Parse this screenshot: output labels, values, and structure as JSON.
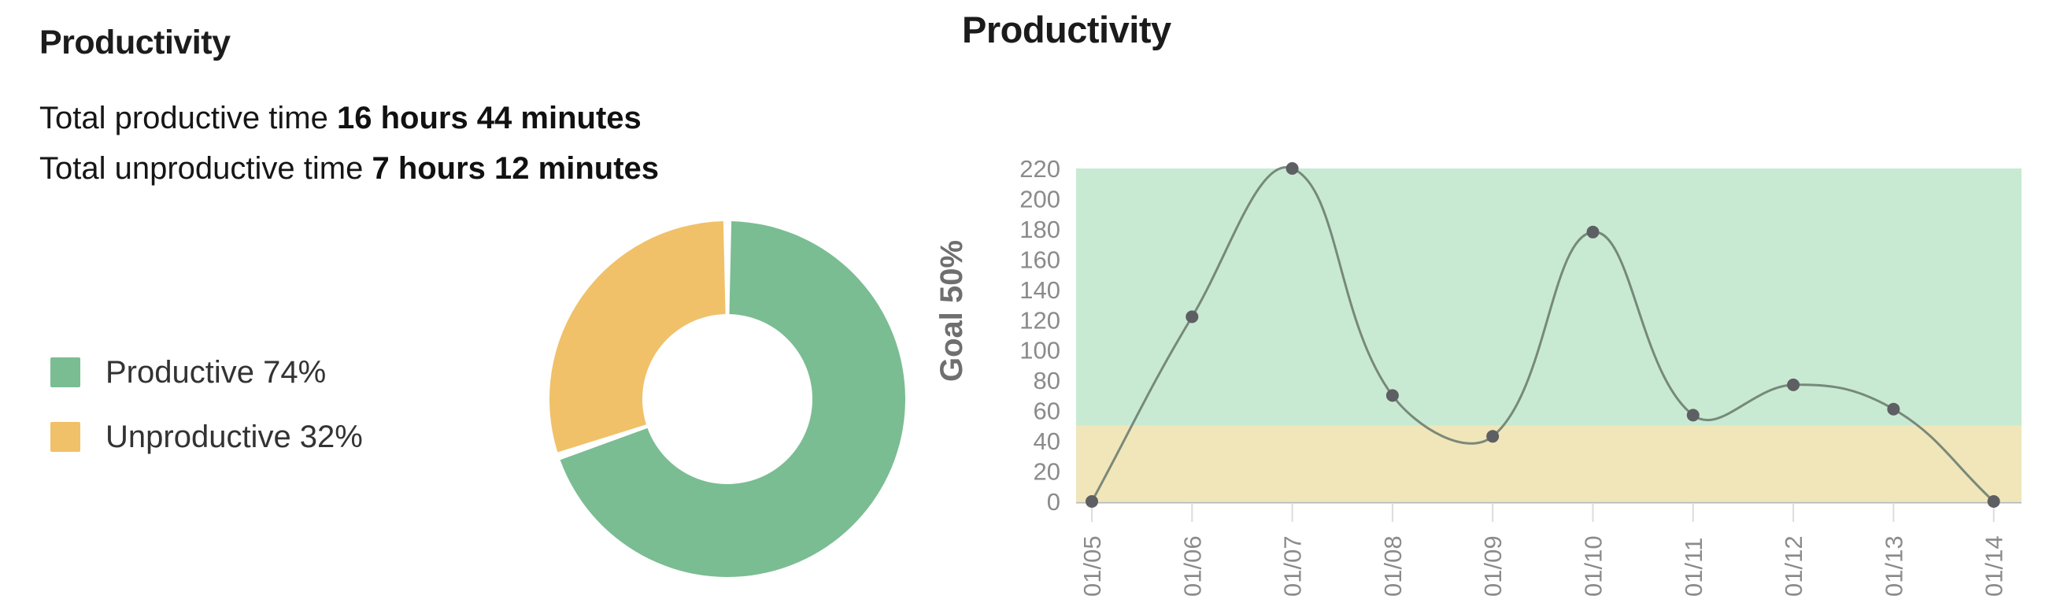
{
  "left_panel": {
    "title": "Productivity",
    "summary": [
      {
        "label": "Total productive time",
        "value": "16 hours 44 minutes"
      },
      {
        "label": "Total unproductive time",
        "value": "7 hours 12 minutes"
      }
    ],
    "legend": [
      {
        "label": "Productive 74%",
        "color": "#7abd92"
      },
      {
        "label": "Unproductive 32%",
        "color": "#f0c169"
      }
    ]
  },
  "right_panel": {
    "title": "Productivity"
  },
  "chart_data": [
    {
      "type": "pie",
      "donut": true,
      "title": "Productivity",
      "labels": [
        "Productive",
        "Unproductive"
      ],
      "values": [
        74,
        32
      ],
      "unit": "%",
      "colors": [
        "#7abd92",
        "#f0c169"
      ],
      "legend_position": "left",
      "note": "segment angles are normalized to the sum of values"
    },
    {
      "type": "line",
      "title": "Productivity",
      "x": [
        "01/05",
        "01/06",
        "01/07",
        "01/08",
        "01/09",
        "01/10",
        "01/11",
        "01/12",
        "01/13",
        "01/14"
      ],
      "values": [
        0,
        122,
        220,
        70,
        43,
        178,
        57,
        77,
        61,
        0
      ],
      "ylabel": "Goal 50%",
      "ylim": [
        0,
        220
      ],
      "ytick_step": 20,
      "goal": 50,
      "band_above_goal_color": "#c8ead2",
      "band_below_goal_color": "#f0e6ba",
      "line_color": "#6e7e71",
      "point_color": "#5e5f63",
      "axis_label_color": "#8b8b8b",
      "goal_label_color": "#6f6f6f",
      "tick_mark_color": "#dcdcdc",
      "grid": false,
      "legend_position": "none"
    }
  ]
}
